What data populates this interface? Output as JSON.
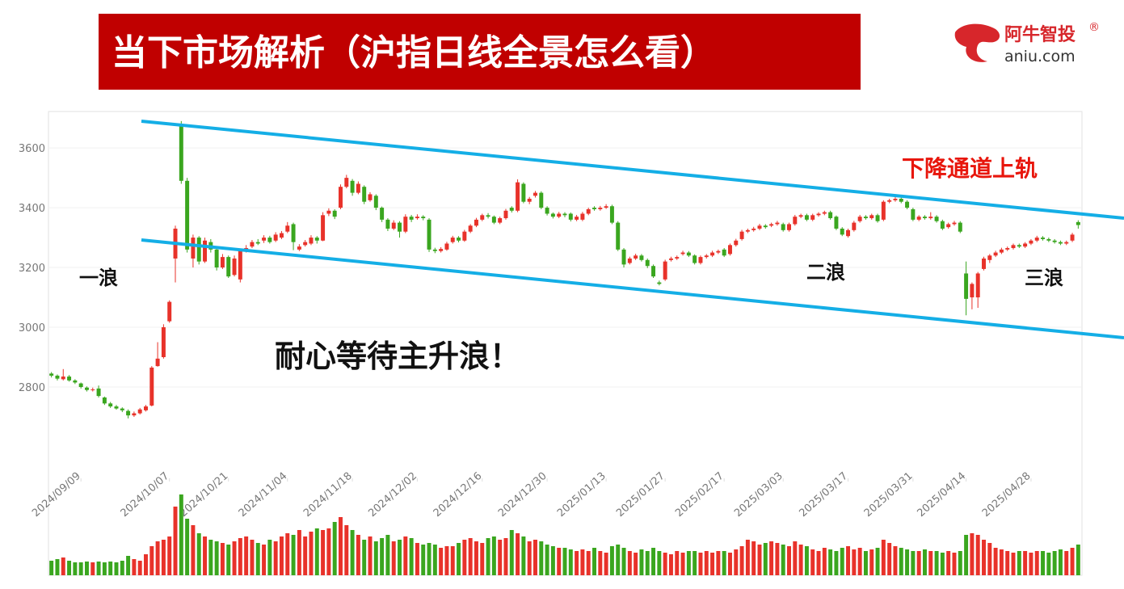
{
  "header": {
    "title": "当下市场解析（沪指日线全景怎么看）"
  },
  "logo": {
    "brand": "阿牛智投",
    "mark": "®",
    "site": "aniu.com"
  },
  "chart_data": {
    "type": "candlestick",
    "up_color": "#e8322a",
    "down_color": "#3aa61f",
    "grid": true,
    "ylim": [
      2170,
      3722
    ],
    "yticks": [
      2800,
      3000,
      3200,
      3400,
      3600
    ],
    "xlim": [
      -0.5,
      174.5
    ],
    "vlim": [
      0,
      100
    ],
    "xticks": [
      {
        "value": 5,
        "label": "2024/09/09"
      },
      {
        "value": 20,
        "label": "2024/10/07"
      },
      {
        "value": 30,
        "label": "2024/10/21"
      },
      {
        "value": 40,
        "label": "2024/11/04"
      },
      {
        "value": 51,
        "label": "2024/11/18"
      },
      {
        "value": 62,
        "label": "2024/12/02"
      },
      {
        "value": 73,
        "label": "2024/12/16"
      },
      {
        "value": 84,
        "label": "2024/12/30"
      },
      {
        "value": 94,
        "label": "2025/01/13"
      },
      {
        "value": 104,
        "label": "2025/01/27"
      },
      {
        "value": 114,
        "label": "2025/02/17"
      },
      {
        "value": 124,
        "label": "2025/03/03"
      },
      {
        "value": 135,
        "label": "2025/03/17"
      },
      {
        "value": 146,
        "label": "2025/03/31"
      },
      {
        "value": 155,
        "label": "2025/04/14"
      },
      {
        "value": 166,
        "label": "2025/04/28"
      }
    ],
    "annotations": [
      "下降通道上轨",
      "一浪",
      "二浪",
      "三浪",
      "耐心等待主升浪！"
    ],
    "ohlc": [
      [
        2845,
        2850,
        2832,
        2838
      ],
      [
        2838,
        2842,
        2822,
        2828
      ],
      [
        2826,
        2860,
        2822,
        2835
      ],
      [
        2835,
        2840,
        2818,
        2822
      ],
      [
        2822,
        2826,
        2810,
        2815
      ],
      [
        2812,
        2815,
        2795,
        2800
      ],
      [
        2798,
        2802,
        2785,
        2790
      ],
      [
        2790,
        2798,
        2785,
        2792
      ],
      [
        2795,
        2805,
        2765,
        2770
      ],
      [
        2765,
        2768,
        2740,
        2745
      ],
      [
        2745,
        2750,
        2730,
        2735
      ],
      [
        2735,
        2740,
        2724,
        2728
      ],
      [
        2728,
        2732,
        2716,
        2722
      ],
      [
        2720,
        2725,
        2695,
        2705
      ],
      [
        2705,
        2718,
        2700,
        2712
      ],
      [
        2712,
        2730,
        2708,
        2725
      ],
      [
        2722,
        2740,
        2718,
        2735
      ],
      [
        2738,
        2870,
        2735,
        2865
      ],
      [
        2870,
        2950,
        2868,
        2895
      ],
      [
        2900,
        3010,
        2895,
        3000
      ],
      [
        3020,
        3090,
        3015,
        3085
      ],
      [
        3230,
        3340,
        3150,
        3330
      ],
      [
        3680,
        3690,
        3480,
        3490
      ],
      [
        3490,
        3500,
        3250,
        3260
      ],
      [
        3230,
        3310,
        3200,
        3300
      ],
      [
        3300,
        3305,
        3210,
        3220
      ],
      [
        3220,
        3300,
        3215,
        3290
      ],
      [
        3285,
        3295,
        3250,
        3260
      ],
      [
        3260,
        3270,
        3190,
        3200
      ],
      [
        3200,
        3245,
        3195,
        3235
      ],
      [
        3235,
        3240,
        3165,
        3170
      ],
      [
        3175,
        3240,
        3170,
        3230
      ],
      [
        3160,
        3262,
        3150,
        3255
      ],
      [
        3255,
        3275,
        3250,
        3265
      ],
      [
        3270,
        3292,
        3265,
        3285
      ],
      [
        3285,
        3295,
        3275,
        3280
      ],
      [
        3290,
        3308,
        3282,
        3300
      ],
      [
        3300,
        3306,
        3280,
        3285
      ],
      [
        3290,
        3318,
        3285,
        3310
      ],
      [
        3300,
        3322,
        3295,
        3315
      ],
      [
        3320,
        3352,
        3315,
        3340
      ],
      [
        3345,
        3350,
        3258,
        3285
      ],
      [
        3260,
        3278,
        3255,
        3270
      ],
      [
        3275,
        3292,
        3270,
        3285
      ],
      [
        3280,
        3308,
        3275,
        3300
      ],
      [
        3300,
        3305,
        3280,
        3290
      ],
      [
        3290,
        3385,
        3288,
        3375
      ],
      [
        3380,
        3398,
        3372,
        3390
      ],
      [
        3390,
        3395,
        3362,
        3370
      ],
      [
        3400,
        3478,
        3395,
        3470
      ],
      [
        3470,
        3510,
        3465,
        3500
      ],
      [
        3490,
        3496,
        3440,
        3450
      ],
      [
        3450,
        3488,
        3445,
        3480
      ],
      [
        3470,
        3475,
        3412,
        3420
      ],
      [
        3425,
        3452,
        3420,
        3445
      ],
      [
        3440,
        3445,
        3392,
        3400
      ],
      [
        3400,
        3404,
        3352,
        3360
      ],
      [
        3360,
        3365,
        3322,
        3330
      ],
      [
        3330,
        3358,
        3325,
        3350
      ],
      [
        3350,
        3355,
        3300,
        3320
      ],
      [
        3320,
        3378,
        3315,
        3370
      ],
      [
        3370,
        3376,
        3352,
        3360
      ],
      [
        3365,
        3378,
        3360,
        3370
      ],
      [
        3370,
        3375,
        3358,
        3365
      ],
      [
        3360,
        3365,
        3252,
        3260
      ],
      [
        3260,
        3266,
        3248,
        3255
      ],
      [
        3255,
        3268,
        3250,
        3262
      ],
      [
        3260,
        3286,
        3256,
        3280
      ],
      [
        3285,
        3306,
        3280,
        3300
      ],
      [
        3300,
        3305,
        3284,
        3290
      ],
      [
        3290,
        3326,
        3286,
        3320
      ],
      [
        3320,
        3345,
        3315,
        3340
      ],
      [
        3340,
        3366,
        3335,
        3360
      ],
      [
        3360,
        3380,
        3355,
        3375
      ],
      [
        3375,
        3382,
        3364,
        3370
      ],
      [
        3370,
        3374,
        3345,
        3350
      ],
      [
        3350,
        3370,
        3345,
        3365
      ],
      [
        3365,
        3396,
        3360,
        3390
      ],
      [
        3400,
        3405,
        3384,
        3390
      ],
      [
        3390,
        3495,
        3385,
        3485
      ],
      [
        3480,
        3485,
        3415,
        3420
      ],
      [
        3420,
        3436,
        3412,
        3430
      ],
      [
        3440,
        3456,
        3434,
        3450
      ],
      [
        3450,
        3455,
        3395,
        3400
      ],
      [
        3400,
        3405,
        3374,
        3380
      ],
      [
        3380,
        3384,
        3364,
        3370
      ],
      [
        3370,
        3386,
        3365,
        3380
      ],
      [
        3380,
        3385,
        3368,
        3375
      ],
      [
        3380,
        3384,
        3354,
        3360
      ],
      [
        3360,
        3376,
        3355,
        3370
      ],
      [
        3360,
        3386,
        3355,
        3380
      ],
      [
        3380,
        3400,
        3375,
        3395
      ],
      [
        3400,
        3405,
        3390,
        3395
      ],
      [
        3395,
        3406,
        3390,
        3400
      ],
      [
        3400,
        3412,
        3396,
        3405
      ],
      [
        3405,
        3410,
        3345,
        3350
      ],
      [
        3350,
        3355,
        3255,
        3260
      ],
      [
        3260,
        3265,
        3200,
        3210
      ],
      [
        3215,
        3236,
        3210,
        3230
      ],
      [
        3230,
        3246,
        3225,
        3240
      ],
      [
        3240,
        3245,
        3220,
        3225
      ],
      [
        3225,
        3230,
        3198,
        3205
      ],
      [
        3205,
        3210,
        3165,
        3170
      ],
      [
        3150,
        3156,
        3140,
        3145
      ],
      [
        3160,
        3226,
        3155,
        3220
      ],
      [
        3225,
        3236,
        3220,
        3230
      ],
      [
        3230,
        3240,
        3225,
        3235
      ],
      [
        3245,
        3256,
        3240,
        3250
      ],
      [
        3250,
        3255,
        3235,
        3240
      ],
      [
        3240,
        3244,
        3210,
        3215
      ],
      [
        3215,
        3240,
        3210,
        3235
      ],
      [
        3235,
        3245,
        3230,
        3240
      ],
      [
        3240,
        3256,
        3235,
        3250
      ],
      [
        3250,
        3260,
        3245,
        3255
      ],
      [
        3260,
        3265,
        3235,
        3240
      ],
      [
        3245,
        3280,
        3240,
        3275
      ],
      [
        3275,
        3296,
        3270,
        3290
      ],
      [
        3295,
        3326,
        3290,
        3320
      ],
      [
        3320,
        3330,
        3315,
        3325
      ],
      [
        3325,
        3336,
        3320,
        3330
      ],
      [
        3330,
        3346,
        3325,
        3340
      ],
      [
        3340,
        3345,
        3330,
        3335
      ],
      [
        3340,
        3350,
        3335,
        3345
      ],
      [
        3345,
        3356,
        3340,
        3350
      ],
      [
        3345,
        3350,
        3320,
        3325
      ],
      [
        3325,
        3350,
        3320,
        3345
      ],
      [
        3345,
        3376,
        3340,
        3370
      ],
      [
        3370,
        3380,
        3365,
        3375
      ],
      [
        3375,
        3380,
        3355,
        3360
      ],
      [
        3360,
        3380,
        3355,
        3375
      ],
      [
        3375,
        3385,
        3370,
        3380
      ],
      [
        3380,
        3390,
        3375,
        3385
      ],
      [
        3385,
        3390,
        3360,
        3365
      ],
      [
        3370,
        3374,
        3325,
        3330
      ],
      [
        3330,
        3335,
        3305,
        3310
      ],
      [
        3305,
        3330,
        3300,
        3325
      ],
      [
        3325,
        3356,
        3320,
        3350
      ],
      [
        3355,
        3376,
        3350,
        3370
      ],
      [
        3370,
        3375,
        3360,
        3365
      ],
      [
        3365,
        3380,
        3360,
        3375
      ],
      [
        3375,
        3380,
        3350,
        3355
      ],
      [
        3360,
        3425,
        3355,
        3420
      ],
      [
        3420,
        3430,
        3415,
        3425
      ],
      [
        3425,
        3440,
        3420,
        3430
      ],
      [
        3430,
        3435,
        3415,
        3420
      ],
      [
        3420,
        3425,
        3395,
        3400
      ],
      [
        3395,
        3400,
        3355,
        3360
      ],
      [
        3360,
        3375,
        3355,
        3370
      ],
      [
        3370,
        3375,
        3360,
        3365
      ],
      [
        3365,
        3385,
        3360,
        3370
      ],
      [
        3370,
        3375,
        3350,
        3355
      ],
      [
        3355,
        3360,
        3325,
        3330
      ],
      [
        3335,
        3350,
        3330,
        3345
      ],
      [
        3345,
        3356,
        3340,
        3350
      ],
      [
        3350,
        3355,
        3315,
        3320
      ],
      [
        3180,
        3220,
        3040,
        3095
      ],
      [
        3100,
        3150,
        3060,
        3145
      ],
      [
        3100,
        3185,
        3065,
        3180
      ],
      [
        3195,
        3236,
        3190,
        3230
      ],
      [
        3225,
        3245,
        3215,
        3240
      ],
      [
        3240,
        3256,
        3235,
        3250
      ],
      [
        3250,
        3266,
        3245,
        3260
      ],
      [
        3260,
        3270,
        3255,
        3265
      ],
      [
        3265,
        3280,
        3260,
        3275
      ],
      [
        3275,
        3280,
        3265,
        3270
      ],
      [
        3270,
        3285,
        3265,
        3280
      ],
      [
        3280,
        3295,
        3275,
        3290
      ],
      [
        3290,
        3306,
        3285,
        3300
      ],
      [
        3300,
        3305,
        3290,
        3295
      ],
      [
        3295,
        3300,
        3285,
        3290
      ],
      [
        3290,
        3295,
        3280,
        3285
      ],
      [
        3285,
        3290,
        3275,
        3280
      ],
      [
        3280,
        3290,
        3275,
        3285
      ],
      [
        3290,
        3316,
        3285,
        3310
      ],
      [
        3352,
        3358,
        3330,
        3342
      ]
    ],
    "volume": [
      18,
      20,
      22,
      18,
      16,
      16,
      17,
      16,
      17,
      16,
      17,
      16,
      18,
      24,
      20,
      18,
      26,
      36,
      42,
      44,
      48,
      85,
      100,
      70,
      62,
      52,
      48,
      44,
      42,
      40,
      38,
      42,
      46,
      48,
      44,
      40,
      38,
      44,
      42,
      48,
      52,
      50,
      56,
      48,
      54,
      58,
      56,
      58,
      66,
      72,
      62,
      56,
      50,
      44,
      48,
      42,
      46,
      50,
      42,
      44,
      48,
      46,
      40,
      38,
      40,
      38,
      34,
      36,
      36,
      40,
      44,
      46,
      42,
      40,
      46,
      48,
      44,
      46,
      56,
      52,
      48,
      42,
      44,
      42,
      38,
      36,
      34,
      34,
      32,
      30,
      32,
      30,
      34,
      30,
      28,
      36,
      38,
      34,
      30,
      28,
      32,
      30,
      34,
      30,
      28,
      26,
      30,
      28,
      30,
      30,
      28,
      30,
      28,
      30,
      30,
      28,
      32,
      36,
      44,
      42,
      38,
      40,
      42,
      40,
      38,
      36,
      42,
      38,
      36,
      32,
      30,
      34,
      32,
      30,
      34,
      36,
      32,
      34,
      30,
      32,
      34,
      44,
      40,
      36,
      34,
      32,
      30,
      30,
      32,
      30,
      30,
      28,
      30,
      28,
      30,
      50,
      52,
      50,
      44,
      40,
      34,
      32,
      30,
      28,
      30,
      30,
      28,
      30,
      30,
      28,
      30,
      32,
      30,
      34,
      38
    ]
  }
}
